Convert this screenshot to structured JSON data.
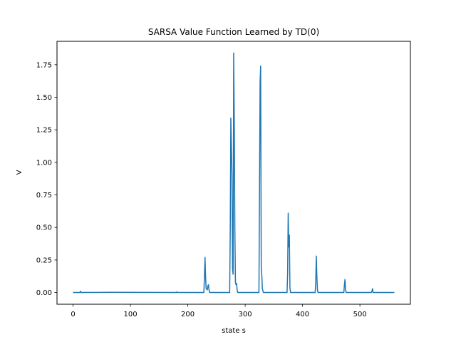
{
  "chart_data": {
    "type": "line",
    "title": "SARSA Value Function Learned by TD(0)",
    "xlabel": "state s",
    "ylabel": "V",
    "xlim": [
      -28,
      588
    ],
    "ylim": [
      -0.09,
      1.93
    ],
    "xticks": [
      0,
      100,
      200,
      300,
      400,
      500
    ],
    "yticks": [
      0.0,
      0.25,
      0.5,
      0.75,
      1.0,
      1.25,
      1.5,
      1.75
    ],
    "ytick_labels": [
      "0.00",
      "0.25",
      "0.50",
      "0.75",
      "1.00",
      "1.25",
      "1.50",
      "1.75"
    ],
    "grid": false,
    "legend": "none",
    "series": [
      {
        "color": "#1f77b4",
        "x": [
          0,
          12,
          13,
          14,
          15,
          65,
          180,
          181,
          182,
          228,
          229,
          230,
          231,
          232,
          234,
          235,
          236,
          237,
          238,
          273,
          274,
          275,
          276,
          277,
          278,
          279,
          280,
          281,
          282,
          283,
          284,
          285,
          286,
          287,
          288,
          324,
          325,
          326,
          327,
          328,
          329,
          330,
          331,
          332,
          373,
          374,
          375,
          376,
          377,
          378,
          379,
          422,
          423,
          424,
          425,
          426,
          427,
          472,
          473,
          474,
          475,
          476,
          520,
          521,
          522,
          523,
          560
        ],
        "values": [
          0.0,
          0.0,
          0.01,
          0.0,
          0.0,
          0.002,
          0.0,
          0.005,
          0.0,
          0.0,
          0.12,
          0.27,
          0.12,
          0.03,
          0.02,
          0.05,
          0.06,
          0.02,
          0.0,
          0.0,
          0.5,
          1.34,
          1.12,
          0.9,
          0.18,
          0.14,
          1.84,
          1.3,
          0.5,
          0.08,
          0.06,
          0.07,
          0.02,
          0.0,
          0.0,
          0.0,
          0.8,
          1.62,
          1.74,
          0.2,
          0.13,
          0.03,
          0.01,
          0.0,
          0.0,
          0.15,
          0.61,
          0.35,
          0.44,
          0.04,
          0.0,
          0.0,
          0.08,
          0.28,
          0.12,
          0.02,
          0.0,
          0.0,
          0.06,
          0.1,
          0.02,
          0.0,
          0.0,
          0.01,
          0.03,
          0.0,
          0.0
        ]
      }
    ]
  }
}
